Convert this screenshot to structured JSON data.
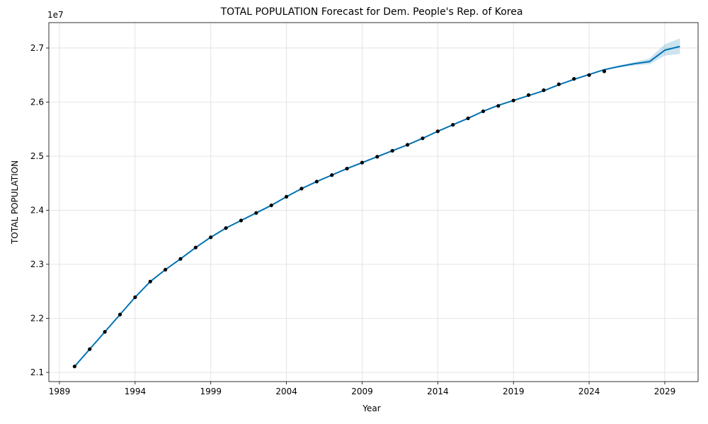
{
  "chart_data": {
    "type": "line",
    "title": "TOTAL POPULATION Forecast for Dem. People's Rep. of Korea",
    "xlabel": "Year",
    "ylabel": "TOTAL POPULATION",
    "y_offset_label": "1e7",
    "xlim": [
      1988.3,
      2031.2
    ],
    "ylim": [
      20.83,
      27.47
    ],
    "y_scale_note": "values in units of 1e7 shown as millions",
    "x_ticks": [
      1989,
      1994,
      1999,
      2004,
      2009,
      2014,
      2019,
      2024,
      2029
    ],
    "x_tick_labels": [
      "1989",
      "1994",
      "1999",
      "2004",
      "2009",
      "2014",
      "2019",
      "2024",
      "2029"
    ],
    "y_ticks": [
      21.0,
      22.0,
      23.0,
      24.0,
      25.0,
      26.0,
      27.0
    ],
    "y_tick_labels": [
      "2.1",
      "2.2",
      "2.3",
      "2.4",
      "2.5",
      "2.6",
      "2.7"
    ],
    "grid": true,
    "colors": {
      "forecast_line": "#0072b2",
      "uncertainty_band": "#0072b2",
      "observed_points": "#000000"
    },
    "observed": {
      "x": [
        1990,
        1991,
        1992,
        1993,
        1994,
        1995,
        1996,
        1997,
        1998,
        1999,
        2000,
        2001,
        2002,
        2003,
        2004,
        2005,
        2006,
        2007,
        2008,
        2009,
        2010,
        2011,
        2012,
        2013,
        2014,
        2015,
        2016,
        2017,
        2018,
        2019,
        2020,
        2021,
        2022,
        2023,
        2024,
        2025
      ],
      "y": [
        21.11,
        21.43,
        21.75,
        22.07,
        22.39,
        22.68,
        22.9,
        23.1,
        23.31,
        23.5,
        23.67,
        23.81,
        23.95,
        24.09,
        24.25,
        24.4,
        24.53,
        24.65,
        24.77,
        24.88,
        24.99,
        25.1,
        25.21,
        25.33,
        25.46,
        25.58,
        25.7,
        25.83,
        25.93,
        26.03,
        26.13,
        26.22,
        26.33,
        26.43,
        26.5,
        26.57
      ]
    },
    "forecast": {
      "x": [
        1990,
        1991,
        1992,
        1993,
        1994,
        1995,
        1996,
        1997,
        1998,
        1999,
        2000,
        2001,
        2002,
        2003,
        2004,
        2005,
        2006,
        2007,
        2008,
        2009,
        2010,
        2011,
        2012,
        2013,
        2014,
        2015,
        2016,
        2017,
        2018,
        2019,
        2020,
        2021,
        2022,
        2023,
        2024,
        2025,
        2026,
        2027,
        2028,
        2029,
        2030
      ],
      "y": [
        21.11,
        21.43,
        21.75,
        22.07,
        22.39,
        22.68,
        22.9,
        23.1,
        23.31,
        23.5,
        23.67,
        23.81,
        23.95,
        24.09,
        24.25,
        24.4,
        24.53,
        24.65,
        24.77,
        24.88,
        24.99,
        25.1,
        25.21,
        25.33,
        25.46,
        25.58,
        25.7,
        25.83,
        25.94,
        26.03,
        26.12,
        26.21,
        26.32,
        26.42,
        26.51,
        26.6,
        26.66,
        26.71,
        26.75,
        26.96,
        27.03
      ],
      "lower": [
        21.1,
        21.42,
        21.74,
        22.06,
        22.38,
        22.67,
        22.89,
        23.09,
        23.3,
        23.49,
        23.66,
        23.8,
        23.94,
        24.08,
        24.24,
        24.39,
        24.52,
        24.64,
        24.76,
        24.87,
        24.98,
        25.09,
        25.2,
        25.32,
        25.45,
        25.57,
        25.69,
        25.82,
        25.93,
        26.02,
        26.11,
        26.2,
        26.31,
        26.41,
        26.5,
        26.59,
        26.64,
        26.68,
        26.7,
        26.86,
        26.89
      ],
      "upper": [
        21.12,
        21.44,
        21.76,
        22.08,
        22.4,
        22.69,
        22.91,
        23.11,
        23.32,
        23.51,
        23.68,
        23.82,
        23.96,
        24.1,
        24.26,
        24.41,
        24.54,
        24.66,
        24.78,
        24.89,
        25.0,
        25.11,
        25.22,
        25.34,
        25.47,
        25.59,
        25.71,
        25.84,
        25.95,
        26.04,
        26.13,
        26.22,
        26.33,
        26.43,
        26.52,
        26.61,
        26.68,
        26.74,
        26.81,
        27.07,
        27.18
      ]
    }
  }
}
